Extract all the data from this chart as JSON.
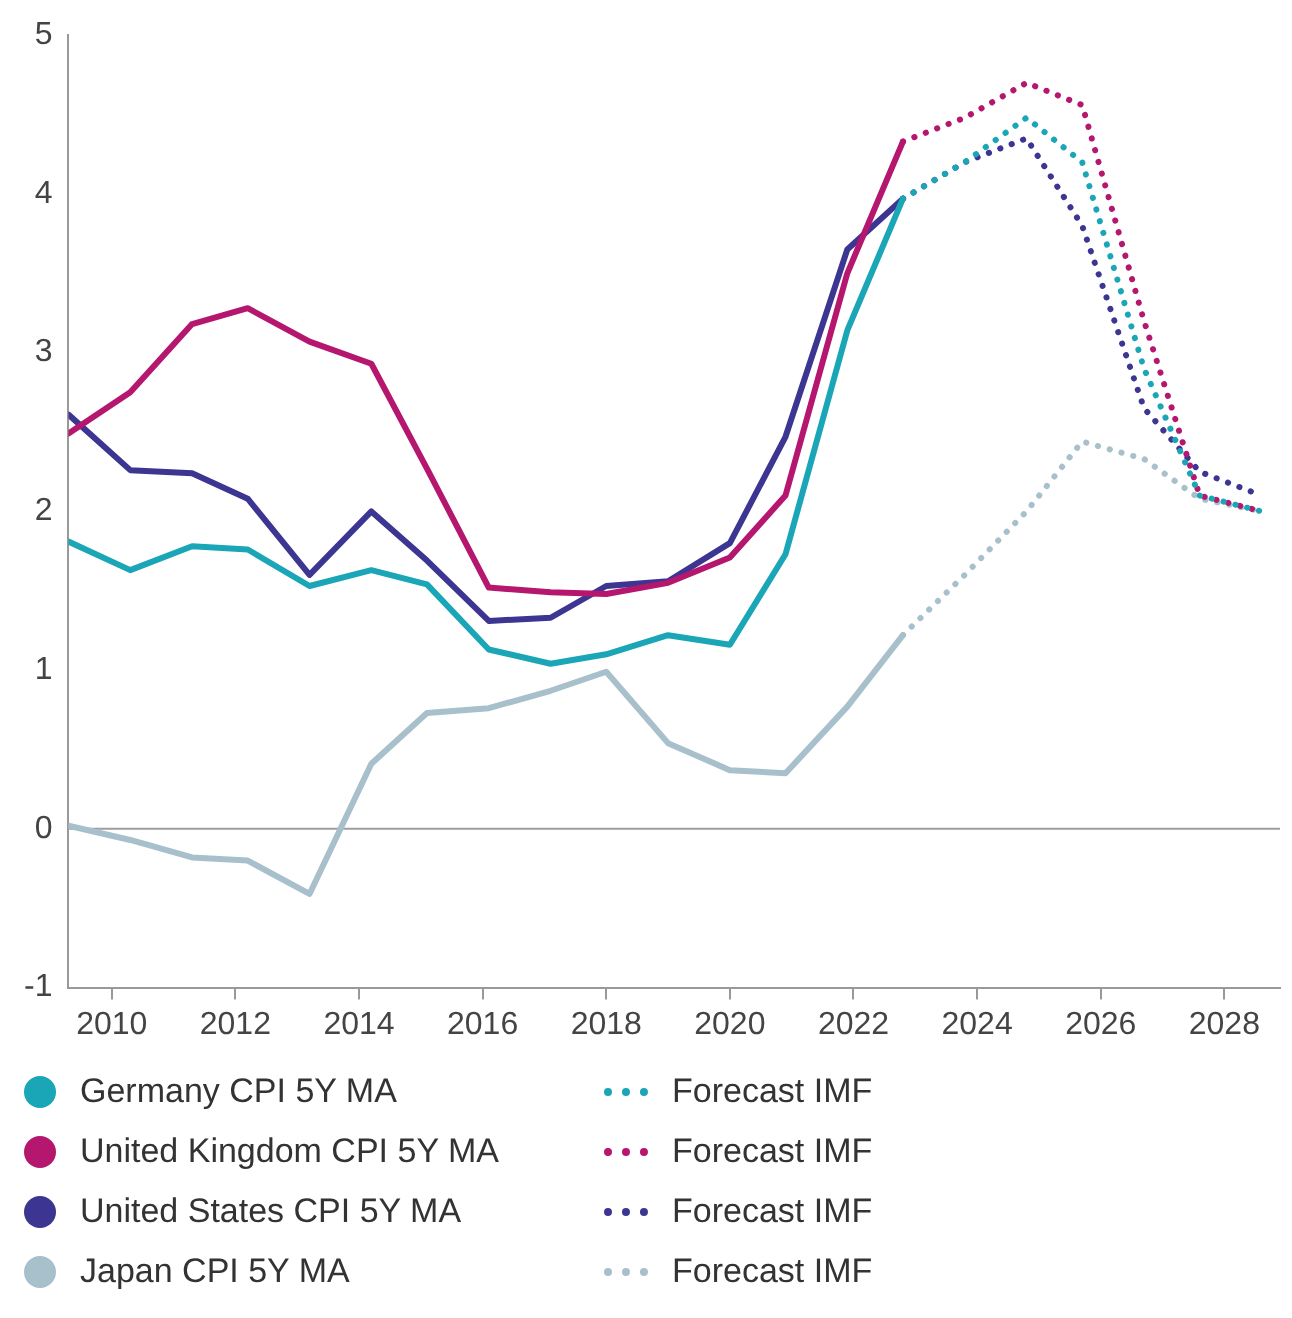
{
  "chart_data": {
    "type": "line",
    "xlim": [
      2009.3,
      2028.9
    ],
    "xticks": [
      2010,
      2012,
      2014,
      2016,
      2018,
      2020,
      2022,
      2024,
      2026,
      2028
    ],
    "ylim": [
      -1,
      5
    ],
    "yticks": [
      -1,
      0,
      1,
      2,
      3,
      4,
      5
    ],
    "grid": false,
    "legend": "bottom",
    "marker": "none",
    "ref_lines": [
      {
        "axis": "y",
        "value": 0,
        "color": "#9e9e9e"
      }
    ],
    "series": [
      {
        "name": "Germany CPI 5Y MA",
        "color": "#1aa6b7",
        "line_style": "solid",
        "x": [
          2009.3,
          2010.3,
          2011.3,
          2012.2,
          2013.2,
          2014.2,
          2015.1,
          2016.1,
          2017.1,
          2018.0,
          2019.0,
          2020.0,
          2020.9,
          2021.9,
          2022.8
        ],
        "values": [
          1.81,
          1.63,
          1.78,
          1.76,
          1.53,
          1.63,
          1.54,
          1.13,
          1.04,
          1.1,
          1.22,
          1.16,
          1.73,
          3.14,
          3.97
        ]
      },
      {
        "name": "United Kingdom CPI 5Y MA",
        "color": "#b5176e",
        "line_style": "solid",
        "x": [
          2009.3,
          2010.3,
          2011.3,
          2012.2,
          2013.2,
          2014.2,
          2015.1,
          2016.1,
          2017.1,
          2018.0,
          2019.0,
          2020.0,
          2020.9,
          2021.9,
          2022.8
        ],
        "values": [
          2.49,
          2.75,
          3.18,
          3.28,
          3.07,
          2.93,
          2.27,
          1.52,
          1.49,
          1.48,
          1.55,
          1.71,
          2.1,
          3.5,
          4.33
        ]
      },
      {
        "name": "United States CPI 5Y MA",
        "color": "#3d3592",
        "line_style": "solid",
        "x": [
          2009.3,
          2010.3,
          2011.3,
          2012.2,
          2013.2,
          2014.2,
          2015.1,
          2016.1,
          2017.1,
          2018.0,
          2019.0,
          2020.0,
          2020.9,
          2021.9,
          2022.8
        ],
        "values": [
          2.61,
          2.26,
          2.24,
          2.08,
          1.6,
          2.0,
          1.69,
          1.31,
          1.33,
          1.53,
          1.56,
          1.8,
          2.47,
          3.65,
          3.97
        ]
      },
      {
        "name": "Japan CPI 5Y MA",
        "color": "#a8bfcc",
        "line_style": "solid",
        "x": [
          2009.3,
          2010.3,
          2011.3,
          2012.2,
          2013.2,
          2014.2,
          2015.1,
          2016.1,
          2017.1,
          2018.0,
          2019.0,
          2020.0,
          2020.9,
          2021.9,
          2022.8
        ],
        "values": [
          0.02,
          -0.07,
          -0.18,
          -0.2,
          -0.41,
          0.41,
          0.73,
          0.76,
          0.87,
          0.99,
          0.54,
          0.37,
          0.35,
          0.77,
          1.22
        ]
      },
      {
        "name": "Forecast IMF",
        "color": "#1aa6b7",
        "line_style": "dotted",
        "x": [
          2022.8,
          2023.8,
          2024.8,
          2025.7,
          2026.7,
          2027.6,
          2028.6
        ],
        "values": [
          3.97,
          4.2,
          4.48,
          4.2,
          2.9,
          2.1,
          2.0
        ]
      },
      {
        "name": "Forecast IMF",
        "color": "#b5176e",
        "line_style": "dotted",
        "x": [
          2022.8,
          2023.8,
          2024.8,
          2025.7,
          2026.7,
          2027.6,
          2028.6
        ],
        "values": [
          4.33,
          4.48,
          4.7,
          4.56,
          3.2,
          2.1,
          2.0
        ]
      },
      {
        "name": "Forecast IMF",
        "color": "#3d3592",
        "line_style": "dotted",
        "x": [
          2022.8,
          2023.8,
          2024.8,
          2025.7,
          2026.7,
          2027.6,
          2028.6
        ],
        "values": [
          3.97,
          4.2,
          4.35,
          3.8,
          2.65,
          2.25,
          2.1
        ]
      },
      {
        "name": "Forecast IMF",
        "color": "#a8bfcc",
        "line_style": "dotted",
        "x": [
          2022.8,
          2023.8,
          2024.8,
          2025.7,
          2026.7,
          2027.6,
          2028.6
        ],
        "values": [
          1.22,
          1.6,
          2.0,
          2.44,
          2.33,
          2.08,
          2.0
        ]
      }
    ]
  }
}
